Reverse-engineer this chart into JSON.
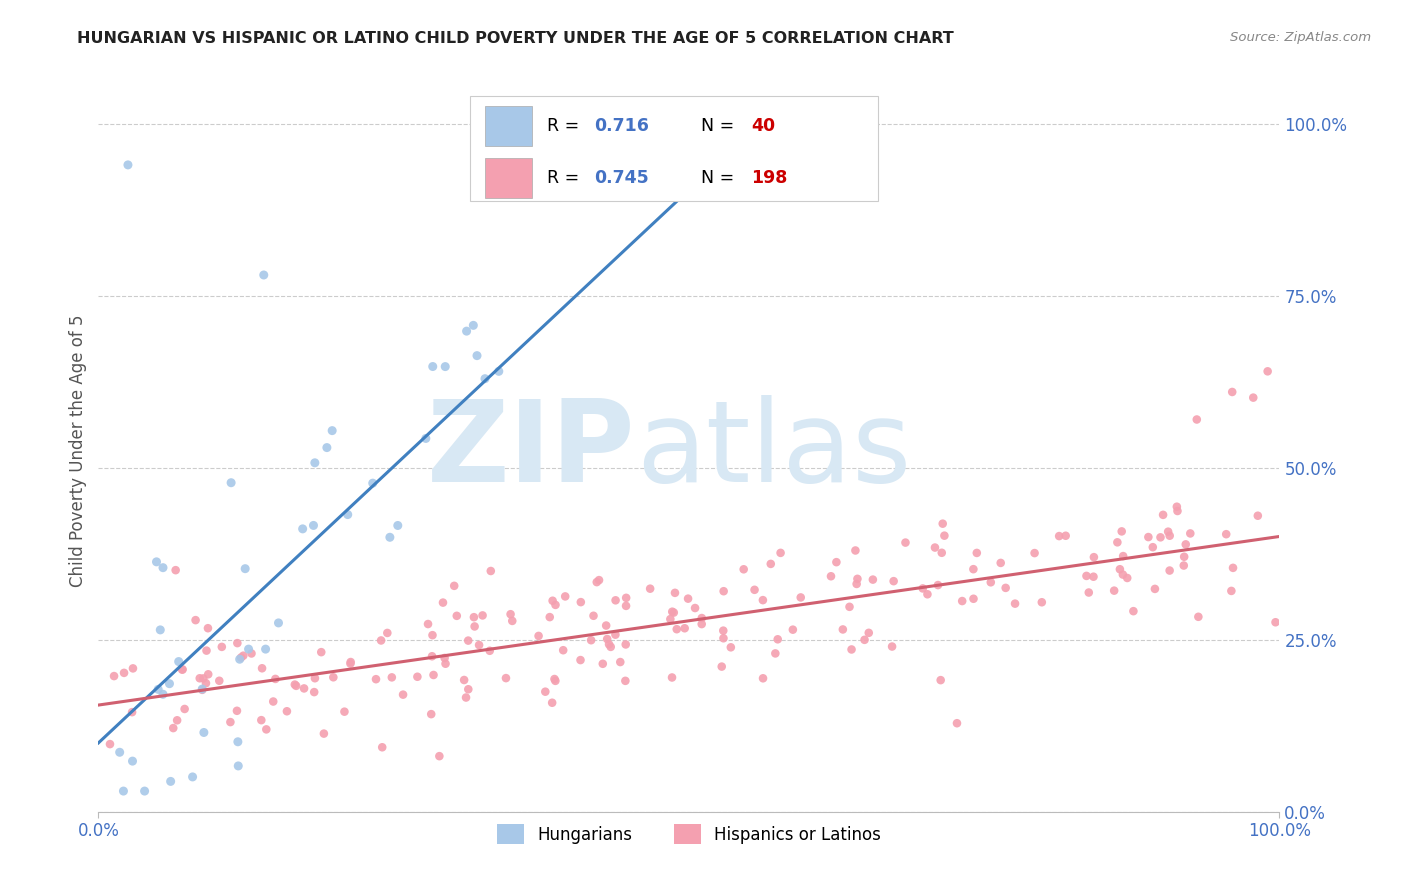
{
  "title": "HUNGARIAN VS HISPANIC OR LATINO CHILD POVERTY UNDER THE AGE OF 5 CORRELATION CHART",
  "source": "Source: ZipAtlas.com",
  "ylabel": "Child Poverty Under the Age of 5",
  "legend_blue_R": "0.716",
  "legend_blue_N": "40",
  "legend_pink_R": "0.745",
  "legend_pink_N": "198",
  "legend_label_blue": "Hungarians",
  "legend_label_pink": "Hispanics or Latinos",
  "blue_color": "#a8c8e8",
  "pink_color": "#f4a0b0",
  "trendline_blue": "#4080c0",
  "trendline_pink": "#d06070",
  "R_N_blue_color": "#4472c4",
  "R_N_pink_R_color": "#4472c4",
  "N_color": "#cc0000",
  "watermark_zip": "ZIP",
  "watermark_atlas": "atlas",
  "watermark_color": "#d8e8f4",
  "background_color": "#ffffff",
  "grid_color": "#cccccc",
  "title_color": "#222222",
  "axis_tick_color": "#4472c4",
  "ytick_vals": [
    0.0,
    0.25,
    0.5,
    0.75,
    1.0
  ],
  "ytick_labels": [
    "0.0%",
    "25.0%",
    "50.0%",
    "75.0%",
    "100.0%"
  ],
  "xtick_vals": [
    0.0,
    1.0
  ],
  "xtick_labels": [
    "0.0%",
    "100.0%"
  ],
  "blue_trend_x0": 0.0,
  "blue_trend_y0": 0.1,
  "blue_trend_x1": 0.56,
  "blue_trend_y1": 1.0,
  "pink_trend_x0": 0.0,
  "pink_trend_y0": 0.155,
  "pink_trend_x1": 1.0,
  "pink_trend_y1": 0.4
}
